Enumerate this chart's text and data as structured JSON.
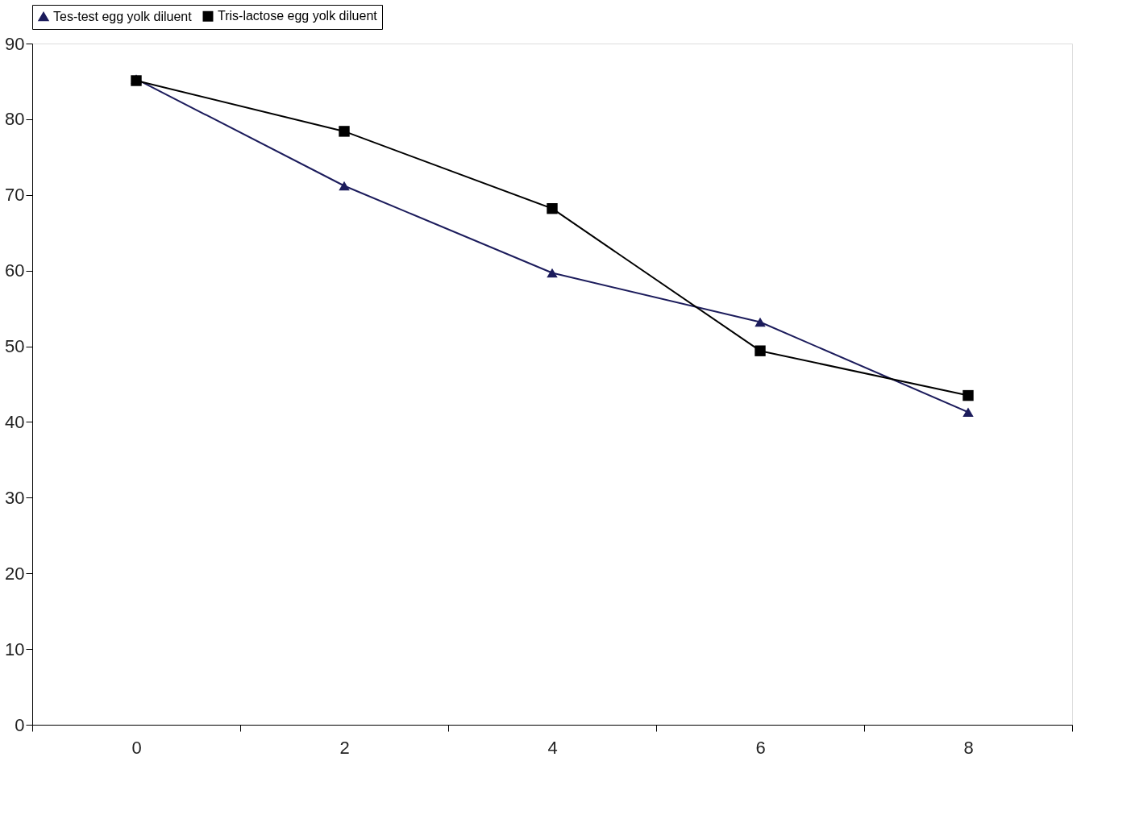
{
  "chart_data": {
    "type": "line",
    "categories": [
      "0",
      "2",
      "4",
      "6",
      "8"
    ],
    "series": [
      {
        "name": "Tes-test egg yolk diluent",
        "color": "#1c1c5c",
        "marker": "triangle",
        "values": [
          85.3,
          71.2,
          59.7,
          53.2,
          41.3
        ]
      },
      {
        "name": "Tris-lactose egg yolk diluent",
        "color": "#000000",
        "marker": "square",
        "values": [
          85.1,
          78.4,
          68.2,
          49.4,
          43.5
        ]
      }
    ],
    "ylim": [
      0,
      90
    ],
    "yticks": [
      0,
      10,
      20,
      30,
      40,
      50,
      60,
      70,
      80,
      90
    ],
    "grid": false,
    "legend": "top"
  }
}
